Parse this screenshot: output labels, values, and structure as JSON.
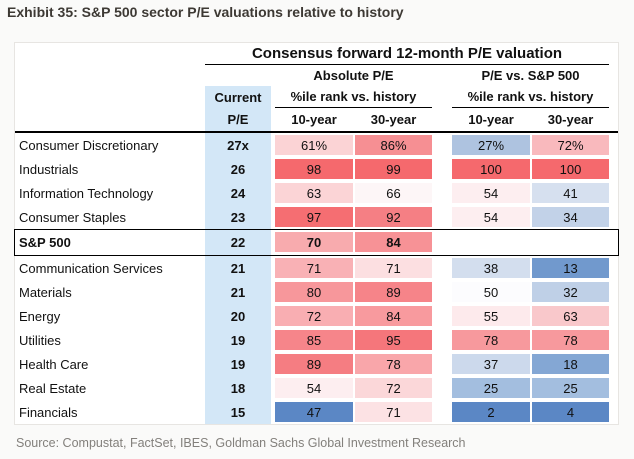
{
  "exhibit_title": "Exhibit 35: S&P 500 sector P/E valuations relative to history",
  "source": "Source: Compustat, FactSet, IBES, Goldman Sachs Global Investment Research",
  "table": {
    "title": "Consensus forward 12-month P/E valuation",
    "group_headers": [
      "Absolute P/E",
      "P/E vs. S&P 500"
    ],
    "subheader": "%ile rank vs. history",
    "current_pe_line1": "Current",
    "current_pe_line2": "P/E",
    "year_cols": [
      "10-year",
      "30-year",
      "10-year",
      "30-year"
    ]
  },
  "colors": {
    "current_pe_column": "#d3e7f7",
    "max_red": "#f5696d",
    "min_blue": "#5b87c5",
    "white_mid": "#fcfcfe"
  },
  "chart_data": {
    "type": "table",
    "title": "Consensus forward 12-month P/E valuation",
    "column_groups": [
      "Absolute P/E — %ile rank vs. history",
      "P/E vs. S&P 500 — %ile rank vs. history"
    ],
    "columns": [
      "Current P/E",
      "Absolute 10-year %ile",
      "Absolute 30-year %ile",
      "Relative 10-year %ile",
      "Relative 30-year %ile"
    ],
    "rows": [
      {
        "label": "Consumer Discretionary",
        "current_pe": "27x",
        "values": [
          61,
          86,
          27,
          72
        ],
        "display": [
          "61%",
          "86%",
          "27%",
          "72%"
        ],
        "colors": [
          "#fbd3d5",
          "#f68f93",
          "#aec3e0",
          "#f9b9bd"
        ],
        "emphasis": false
      },
      {
        "label": "Industrials",
        "current_pe": "26",
        "values": [
          98,
          99,
          100,
          100
        ],
        "display": [
          "98",
          "99",
          "100",
          "100"
        ],
        "colors": [
          "#f5696d",
          "#f5696d",
          "#f5696d",
          "#f5696d"
        ],
        "emphasis": false
      },
      {
        "label": "Information Technology",
        "current_pe": "24",
        "values": [
          63,
          66,
          54,
          41
        ],
        "display": [
          "63",
          "66",
          "54",
          "41"
        ],
        "colors": [
          "#fbd4d6",
          "#fdf6f7",
          "#fdeef0",
          "#d6e0ef"
        ],
        "emphasis": false
      },
      {
        "label": "Consumer Staples",
        "current_pe": "23",
        "values": [
          97,
          92,
          54,
          34
        ],
        "display": [
          "97",
          "92",
          "54",
          "34"
        ],
        "colors": [
          "#f56e72",
          "#f57f84",
          "#fdeef0",
          "#c2d2e8"
        ],
        "emphasis": false
      },
      {
        "label": "S&P 500",
        "current_pe": "22",
        "values": [
          70,
          84,
          null,
          null
        ],
        "display": [
          "70",
          "84",
          "",
          ""
        ],
        "colors": [
          "#f8abae",
          "#f79296",
          "#ffffff",
          "#ffffff"
        ],
        "emphasis": true
      },
      {
        "label": "Communication Services",
        "current_pe": "21",
        "values": [
          71,
          71,
          38,
          13
        ],
        "display": [
          "71",
          "71",
          "38",
          "13"
        ],
        "colors": [
          "#f9b1b5",
          "#fcdfe1",
          "#d3deee",
          "#7199cd"
        ],
        "emphasis": false
      },
      {
        "label": "Materials",
        "current_pe": "21",
        "values": [
          80,
          89,
          50,
          32
        ],
        "display": [
          "80",
          "89",
          "50",
          "32"
        ],
        "colors": [
          "#f7979b",
          "#f68489",
          "#fcfcfe",
          "#bfd0e7"
        ],
        "emphasis": false
      },
      {
        "label": "Energy",
        "current_pe": "20",
        "values": [
          72,
          84,
          55,
          63
        ],
        "display": [
          "72",
          "84",
          "55",
          "63"
        ],
        "colors": [
          "#f9aeb2",
          "#f89a9e",
          "#fdeaec",
          "#f9c8cb"
        ],
        "emphasis": false
      },
      {
        "label": "Utilities",
        "current_pe": "19",
        "values": [
          85,
          95,
          78,
          78
        ],
        "display": [
          "85",
          "95",
          "78",
          "78"
        ],
        "colors": [
          "#f6858a",
          "#f5767b",
          "#f7999d",
          "#f7999d"
        ],
        "emphasis": false
      },
      {
        "label": "Health Care",
        "current_pe": "19",
        "values": [
          89,
          78,
          37,
          18
        ],
        "display": [
          "89",
          "78",
          "37",
          "18"
        ],
        "colors": [
          "#f57d82",
          "#f9a6aa",
          "#ccd9ec",
          "#84a7d4"
        ],
        "emphasis": false
      },
      {
        "label": "Real Estate",
        "current_pe": "18",
        "values": [
          54,
          72,
          25,
          25
        ],
        "display": [
          "54",
          "72",
          "25",
          "25"
        ],
        "colors": [
          "#fdeef0",
          "#fbd7d9",
          "#a3bedf",
          "#a3bedf"
        ],
        "emphasis": false
      },
      {
        "label": "Financials",
        "current_pe": "15",
        "values": [
          47,
          71,
          2,
          4
        ],
        "display": [
          "47",
          "71",
          "2",
          "4"
        ],
        "colors": [
          "#5b87c5",
          "#fce2e4",
          "#5b87c5",
          "#5b87c5"
        ],
        "emphasis": false
      }
    ]
  }
}
